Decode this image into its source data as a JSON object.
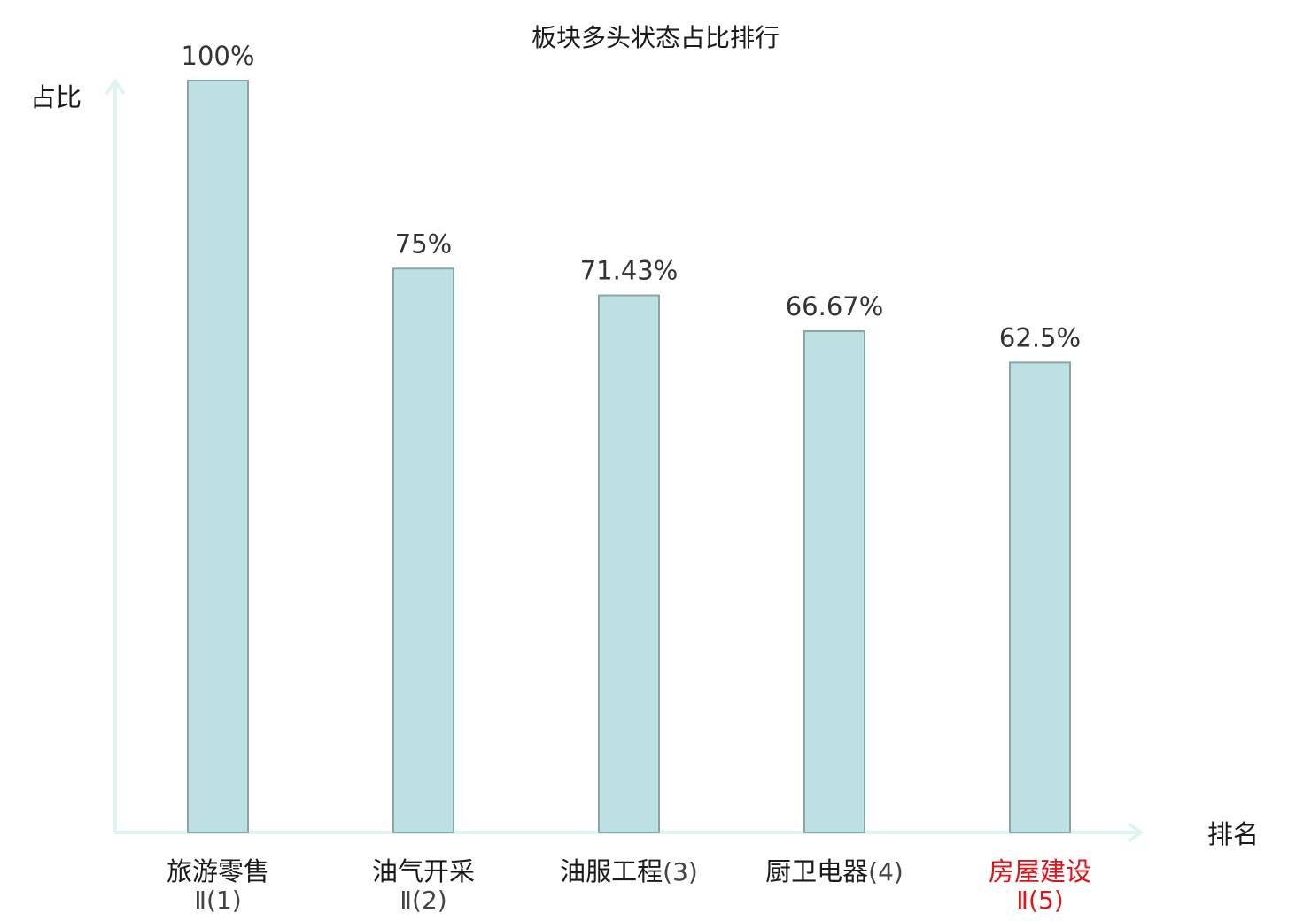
{
  "chart_data": {
    "type": "bar",
    "title": "板块多头状态占比排行",
    "ylabel": "占比",
    "xlabel": "排名",
    "ylim": [
      0,
      100
    ],
    "grid": false,
    "legend": "none",
    "categories": [
      {
        "name": "旅游零售",
        "rank": "Ⅱ(1)",
        "highlight": false
      },
      {
        "name": "油气开采",
        "rank": "Ⅱ(2)",
        "highlight": false
      },
      {
        "name": "油服工程",
        "rank": "(3)",
        "highlight": false
      },
      {
        "name": "厨卫电器",
        "rank": "(4)",
        "highlight": false
      },
      {
        "name": "房屋建设",
        "rank": "Ⅱ(5)",
        "highlight": true
      }
    ],
    "values": [
      100,
      75,
      71.43,
      66.67,
      62.5
    ],
    "value_labels": [
      "100%",
      "75%",
      "71.43%",
      "66.67%",
      "62.5%"
    ]
  },
  "colors": {
    "bar_fill": "#bde0e2",
    "bar_stroke": "#8aa5a5",
    "axis": "#dff3f0",
    "text": "#1a1a1a",
    "rank_text": "#444444",
    "highlight": "#e0141b"
  }
}
